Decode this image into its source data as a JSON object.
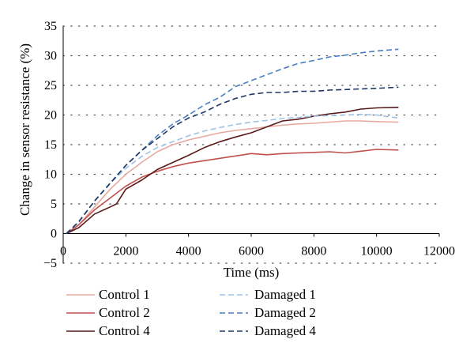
{
  "chart_data": {
    "type": "line",
    "xlabel": "Time (ms)",
    "ylabel": "Change in sensor resistance (%)",
    "xlim": [
      0,
      12000
    ],
    "ylim": [
      -5,
      35
    ],
    "x_ticks": [
      "0",
      "2000",
      "4000",
      "6000",
      "8000",
      "10000",
      "12000"
    ],
    "y_ticks": [
      "35",
      "30",
      "25",
      "20",
      "15",
      "10",
      "5",
      "0",
      "−5"
    ],
    "grid": "horizontal dotted",
    "legend_position": "bottom",
    "series": [
      {
        "name": "Control 1",
        "color": "#e8a9a0",
        "dash": "solid",
        "points": [
          [
            100,
            0
          ],
          [
            500,
            1.5
          ],
          [
            1000,
            4.5
          ],
          [
            1500,
            7.5
          ],
          [
            2000,
            10
          ],
          [
            2500,
            12
          ],
          [
            3000,
            13.8
          ],
          [
            3500,
            15
          ],
          [
            4000,
            15.8
          ],
          [
            4500,
            16.4
          ],
          [
            5000,
            17
          ],
          [
            5500,
            17.4
          ],
          [
            6000,
            17.7
          ],
          [
            6500,
            18
          ],
          [
            7000,
            18.3
          ],
          [
            7500,
            18.5
          ],
          [
            8000,
            18.6
          ],
          [
            8500,
            18.8
          ],
          [
            9000,
            19
          ],
          [
            9500,
            19
          ],
          [
            10000,
            18.9
          ],
          [
            10700,
            18.8
          ]
        ]
      },
      {
        "name": "Control 2",
        "color": "#c0504d",
        "dash": "solid",
        "points": [
          [
            100,
            0
          ],
          [
            500,
            1.5
          ],
          [
            1000,
            4
          ],
          [
            1500,
            6
          ],
          [
            2000,
            8
          ],
          [
            2500,
            9.5
          ],
          [
            3000,
            10.5
          ],
          [
            3500,
            11.3
          ],
          [
            4000,
            11.9
          ],
          [
            4500,
            12.3
          ],
          [
            5000,
            12.7
          ],
          [
            5500,
            13.1
          ],
          [
            6000,
            13.5
          ],
          [
            6500,
            13.3
          ],
          [
            7000,
            13.5
          ],
          [
            7500,
            13.6
          ],
          [
            8000,
            13.7
          ],
          [
            8500,
            13.8
          ],
          [
            9000,
            13.6
          ],
          [
            9500,
            13.9
          ],
          [
            10000,
            14.2
          ],
          [
            10700,
            14.1
          ]
        ]
      },
      {
        "name": "Control 4",
        "color": "#5a1a1a",
        "dash": "solid",
        "points": [
          [
            100,
            0
          ],
          [
            500,
            1
          ],
          [
            1000,
            3.3
          ],
          [
            1500,
            4.5
          ],
          [
            1700,
            5
          ],
          [
            2000,
            7.5
          ],
          [
            2500,
            9
          ],
          [
            3000,
            10.8
          ],
          [
            3500,
            12
          ],
          [
            4000,
            13.2
          ],
          [
            4500,
            14.5
          ],
          [
            5000,
            15.5
          ],
          [
            5500,
            16.3
          ],
          [
            6000,
            17
          ],
          [
            6500,
            18
          ],
          [
            7000,
            19
          ],
          [
            7500,
            19.3
          ],
          [
            8000,
            19.8
          ],
          [
            8500,
            20.2
          ],
          [
            9000,
            20.5
          ],
          [
            9500,
            21
          ],
          [
            10000,
            21.2
          ],
          [
            10700,
            21.3
          ]
        ]
      },
      {
        "name": "Damaged 1",
        "color": "#9dc3e6",
        "dash": "dashed",
        "points": [
          [
            100,
            0
          ],
          [
            500,
            2
          ],
          [
            1000,
            5.5
          ],
          [
            1500,
            8.5
          ],
          [
            2000,
            11
          ],
          [
            2500,
            13
          ],
          [
            3000,
            14.5
          ],
          [
            3500,
            15.5
          ],
          [
            4000,
            16.5
          ],
          [
            4500,
            17.3
          ],
          [
            5000,
            17.9
          ],
          [
            5500,
            18.4
          ],
          [
            6000,
            18.8
          ],
          [
            6500,
            19.1
          ],
          [
            7000,
            19.4
          ],
          [
            7500,
            19.6
          ],
          [
            8000,
            19.8
          ],
          [
            8500,
            19.9
          ],
          [
            9000,
            20
          ],
          [
            9500,
            20.1
          ],
          [
            10000,
            20
          ],
          [
            10700,
            19.5
          ]
        ]
      },
      {
        "name": "Damaged 2",
        "color": "#4a7fc1",
        "dash": "dashed",
        "points": [
          [
            100,
            0
          ],
          [
            500,
            2
          ],
          [
            1000,
            5.5
          ],
          [
            1500,
            8.5
          ],
          [
            2000,
            11.5
          ],
          [
            2500,
            14
          ],
          [
            3000,
            16.5
          ],
          [
            3500,
            18.5
          ],
          [
            4000,
            20
          ],
          [
            4500,
            21.7
          ],
          [
            5000,
            23
          ],
          [
            5500,
            24.8
          ],
          [
            6000,
            25.8
          ],
          [
            6500,
            26.8
          ],
          [
            7000,
            27.8
          ],
          [
            7500,
            28.7
          ],
          [
            8000,
            29.2
          ],
          [
            8500,
            29.8
          ],
          [
            9000,
            30.1
          ],
          [
            9500,
            30.5
          ],
          [
            10000,
            30.8
          ],
          [
            10700,
            31.1
          ]
        ]
      },
      {
        "name": "Damaged 4",
        "color": "#1f3864",
        "dash": "dashed",
        "points": [
          [
            100,
            0
          ],
          [
            500,
            2
          ],
          [
            1000,
            5.5
          ],
          [
            1500,
            8.5
          ],
          [
            2000,
            11.5
          ],
          [
            2500,
            14
          ],
          [
            3000,
            16
          ],
          [
            3500,
            18
          ],
          [
            4000,
            19.5
          ],
          [
            4500,
            20.5
          ],
          [
            5000,
            21.8
          ],
          [
            5500,
            22.8
          ],
          [
            6000,
            23.5
          ],
          [
            6500,
            23.8
          ],
          [
            7000,
            23.8
          ],
          [
            7500,
            24
          ],
          [
            8000,
            24
          ],
          [
            8500,
            24.2
          ],
          [
            9000,
            24.3
          ],
          [
            9500,
            24.4
          ],
          [
            10000,
            24.5
          ],
          [
            10700,
            24.7
          ]
        ]
      }
    ]
  }
}
